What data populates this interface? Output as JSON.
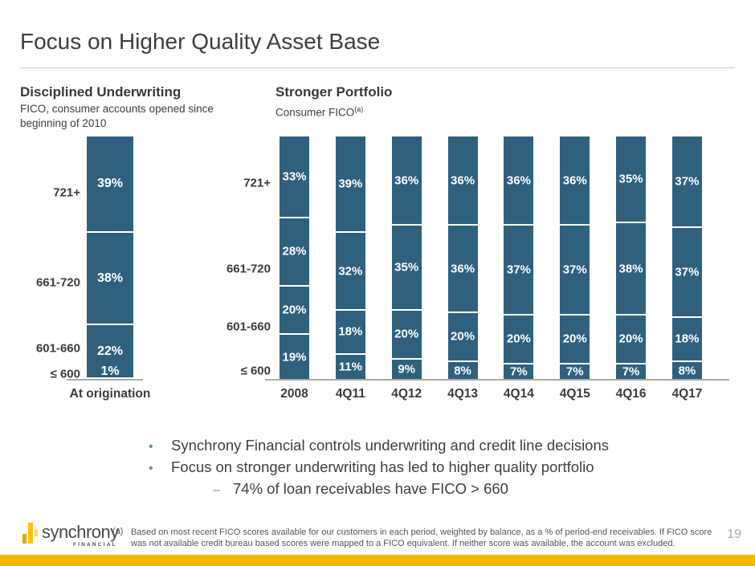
{
  "slide": {
    "title": "Focus on Higher Quality Asset Base",
    "page_number": "19"
  },
  "chart_data": [
    {
      "id": "at-origination",
      "type": "bar",
      "stacked": true,
      "title": "Disciplined Underwriting",
      "subtitle_lines": [
        "FICO, consumer accounts opened since",
        "beginning of 2010"
      ],
      "categories": [
        "At origination"
      ],
      "unit": "%",
      "ylim": [
        0,
        100
      ],
      "stack_order": "top-to-bottom",
      "series": [
        {
          "name": "721+",
          "values": [
            39
          ]
        },
        {
          "name": "661-720",
          "values": [
            38
          ]
        },
        {
          "name": "601-660",
          "values": [
            22
          ]
        },
        {
          "name": "≤ 600",
          "values": [
            1
          ]
        }
      ],
      "row_label_positions_pct": [
        23.1,
        60,
        87,
        97.7
      ]
    },
    {
      "id": "consumer-fico-portfolio",
      "type": "bar",
      "stacked": true,
      "title": "Stronger Portfolio",
      "subtitle": "Consumer FICO",
      "subtitle_ref": "(a)",
      "categories": [
        "2008",
        "4Q11",
        "4Q12",
        "4Q13",
        "4Q14",
        "4Q15",
        "4Q16",
        "4Q17"
      ],
      "unit": "%",
      "ylim": [
        0,
        100
      ],
      "stack_order": "top-to-bottom",
      "series": [
        {
          "name": "721+",
          "values": [
            33,
            39,
            36,
            36,
            36,
            36,
            35,
            37
          ]
        },
        {
          "name": "661-720",
          "values": [
            28,
            32,
            35,
            36,
            37,
            37,
            38,
            37
          ]
        },
        {
          "name": "601-660",
          "values": [
            20,
            18,
            20,
            20,
            20,
            20,
            20,
            18
          ]
        },
        {
          "name": "≤ 600",
          "values": [
            19,
            11,
            9,
            8,
            7,
            7,
            7,
            8
          ]
        }
      ],
      "row_label_positions_pct": [
        19.1,
        54.5,
        78.2,
        96.4
      ]
    }
  ],
  "bullets": {
    "items": [
      {
        "level": 1,
        "marker": "•",
        "text": "Synchrony Financial controls underwriting and credit line decisions"
      },
      {
        "level": 1,
        "marker": "•",
        "text": "Focus on stronger underwriting has led to higher quality portfolio"
      },
      {
        "level": 2,
        "marker": "–",
        "text": "74% of loan receivables have FICO > 660"
      }
    ]
  },
  "footer": {
    "logo": {
      "name": "synchrony",
      "sub": "FINANCIAL"
    },
    "footnote_marker": "(a)",
    "footnote_text": "Based on most recent FICO scores available for our customers in each period, weighted by balance, as a % of period-end receivables. If FICO score was not available credit bureau based scores were mapped to a FICO equivalent. If neither score was available, the account was excluded."
  },
  "colors": {
    "bar_teal": "#2F617E",
    "accent_gold": "#F5B800",
    "bullet_marker": "#6E8CA0",
    "logo_gold_dark": "#E8A200",
    "logo_gold": "#FFC200",
    "logo_gold_light": "#FFD966"
  }
}
